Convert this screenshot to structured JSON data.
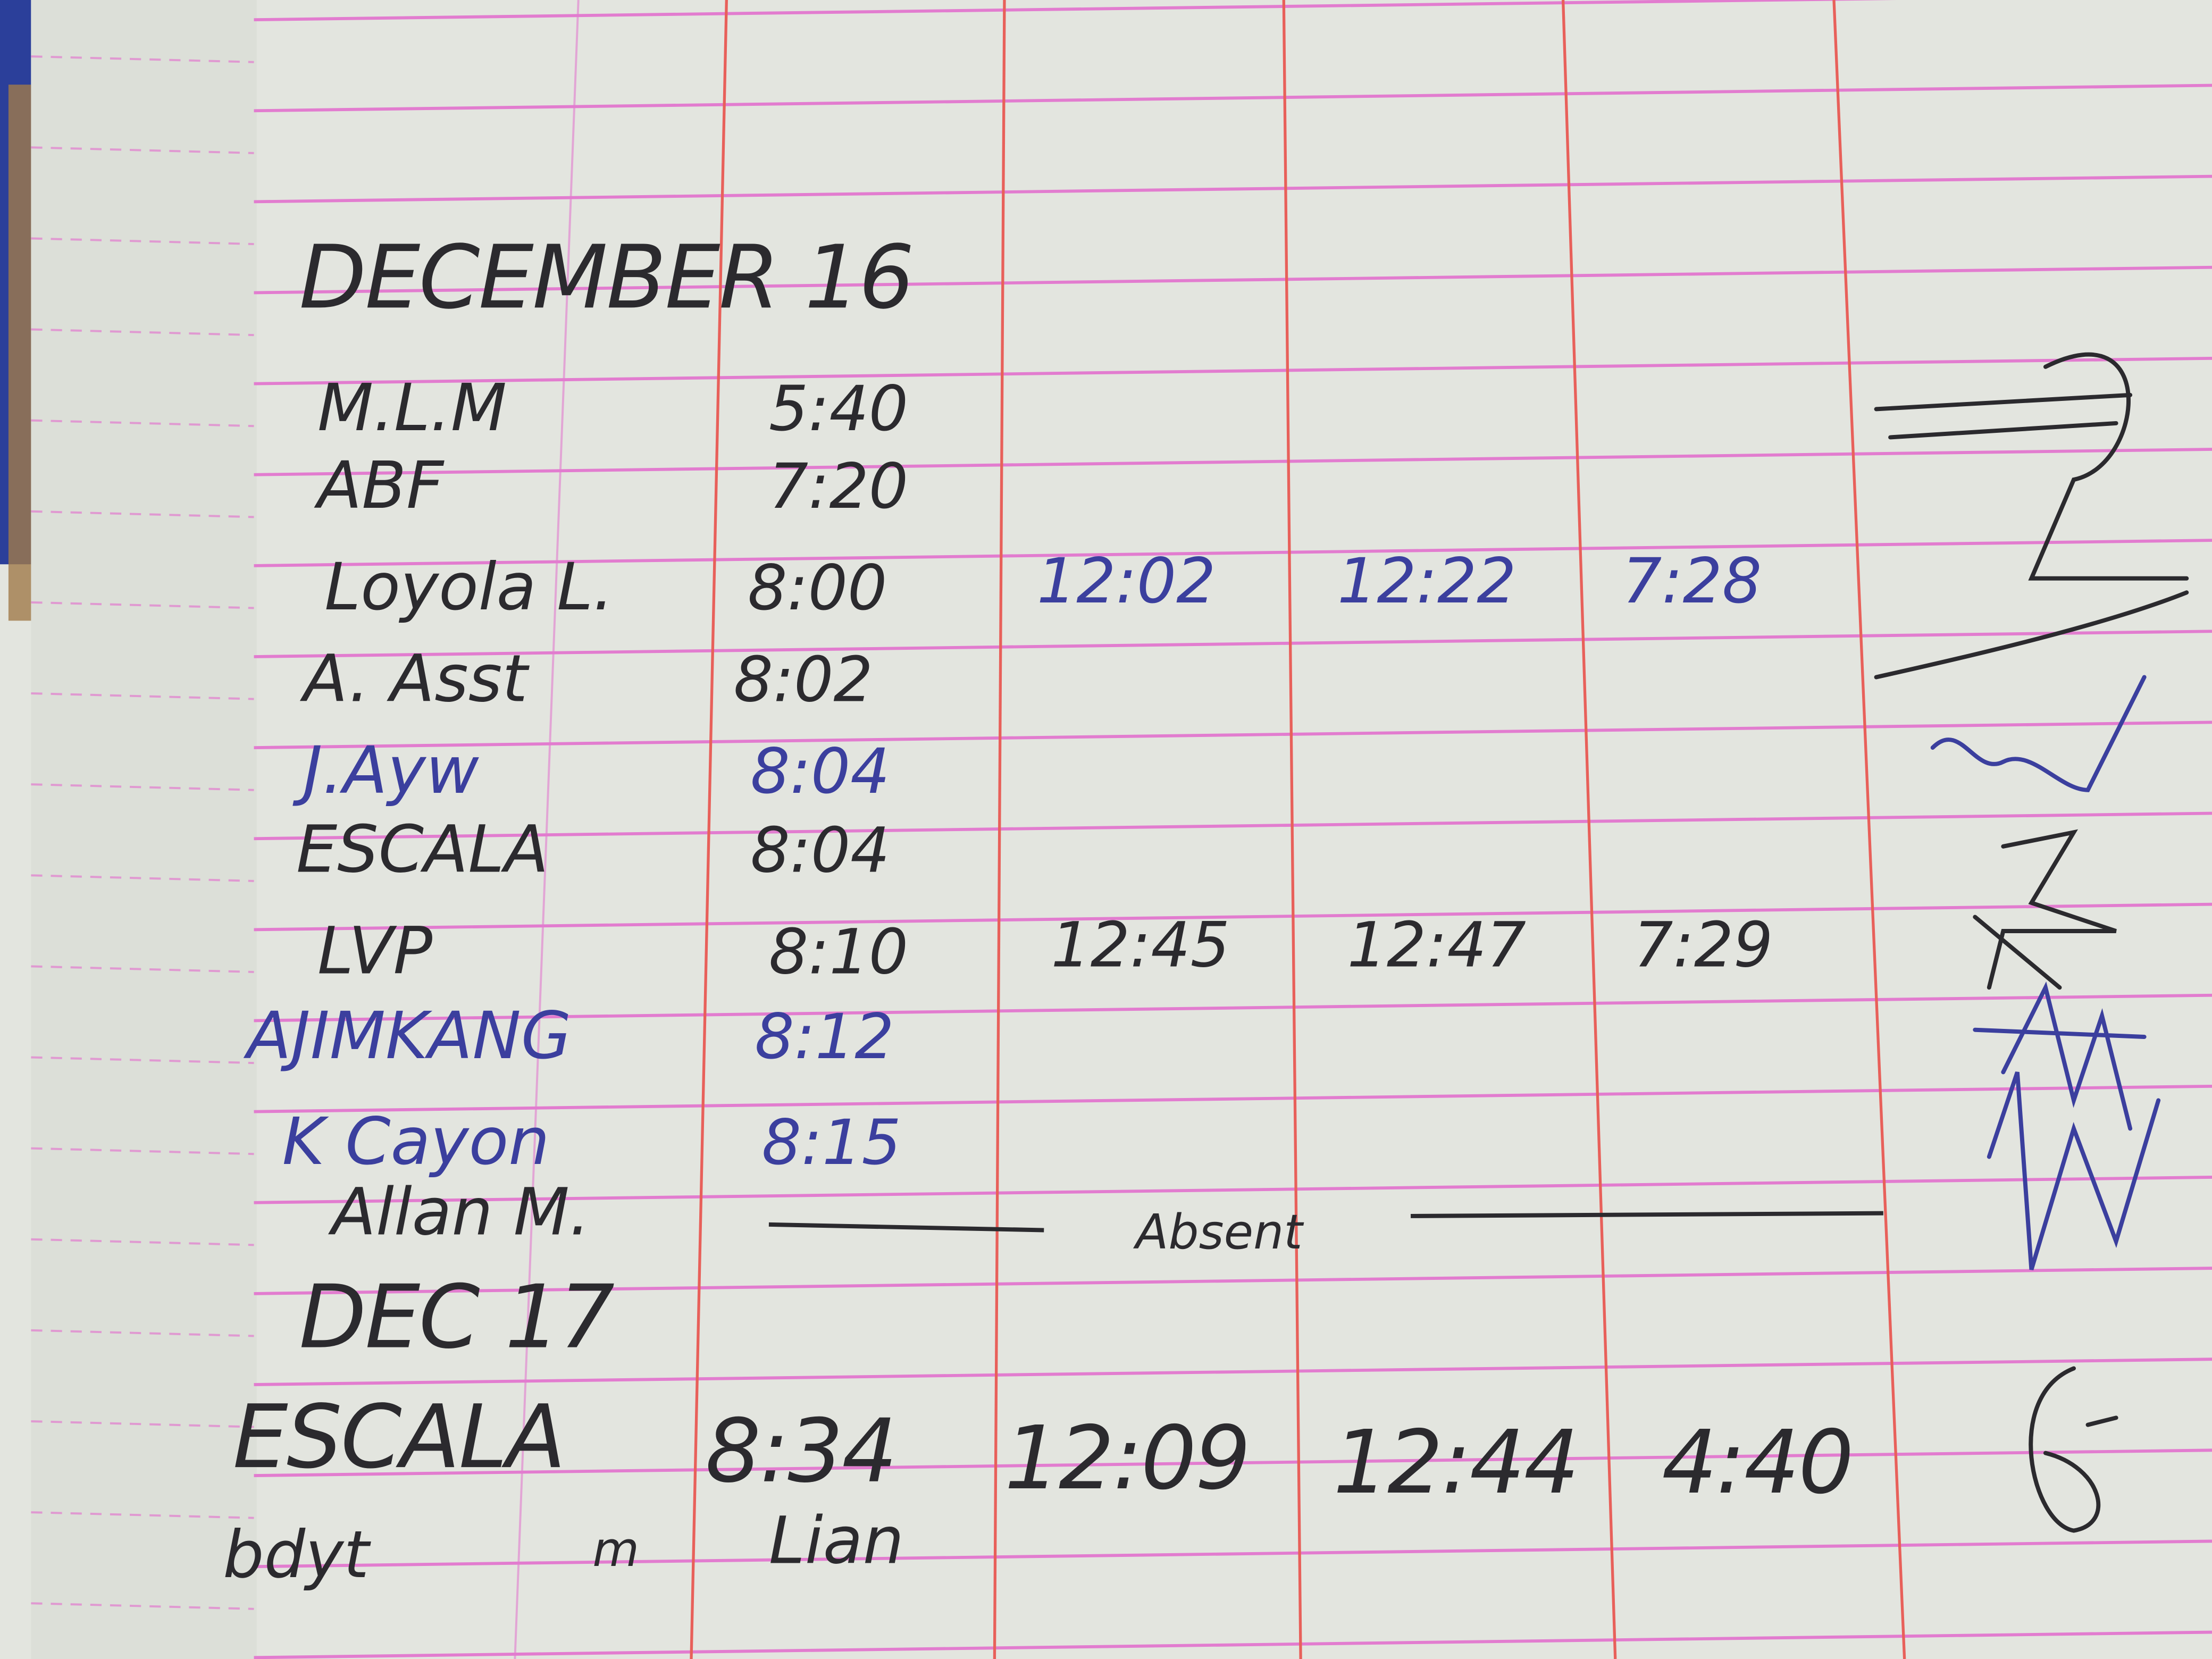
{
  "colors": {
    "paper": "#e3e5df",
    "ruling_pink": "#e27ccf",
    "margin_red": "#e8605a",
    "ink_black": "#2b2a2e",
    "ink_blue": "#3b3f9e",
    "cover_blue": "#2b3f9a",
    "cover_brown": "#a07a4a"
  },
  "log": {
    "date_1": "DECEMBER 16",
    "entries_1": [
      {
        "name": "M.L.M",
        "time_in": "5:40",
        "lunch_out": "",
        "lunch_in": "",
        "time_out": "",
        "ink": "black"
      },
      {
        "name": "ABF",
        "time_in": "7:20",
        "lunch_out": "",
        "lunch_in": "",
        "time_out": "",
        "ink": "black"
      },
      {
        "name": "Loyola L.",
        "time_in": "8:00",
        "lunch_out": "12:02",
        "lunch_in": "12:22",
        "time_out": "7:28",
        "ink": "black",
        "later_ink": "blue"
      },
      {
        "name": "A. Asst",
        "time_in": "8:02",
        "lunch_out": "",
        "lunch_in": "",
        "time_out": "",
        "ink": "black"
      },
      {
        "name": "J.Ayw",
        "time_in": "8:04",
        "lunch_out": "",
        "lunch_in": "",
        "time_out": "",
        "ink": "blue"
      },
      {
        "name": "ESCALA",
        "time_in": "8:04",
        "lunch_out": "",
        "lunch_in": "",
        "time_out": "",
        "ink": "black"
      },
      {
        "name": "LVP",
        "time_in": "8:10",
        "lunch_out": "12:45",
        "lunch_in": "12:47",
        "time_out": "7:29",
        "ink": "black"
      },
      {
        "name": "AJIMKANG",
        "time_in": "8:12",
        "lunch_out": "",
        "lunch_in": "",
        "time_out": "",
        "ink": "blue"
      },
      {
        "name": "K Cayon",
        "time_in": "8:15",
        "lunch_out": "",
        "lunch_in": "",
        "time_out": "",
        "ink": "blue"
      }
    ],
    "absent_entry": {
      "name": "Allan M.",
      "note": "Absent"
    },
    "date_2": "DEC 17",
    "entries_2": [
      {
        "name": "ESCALA",
        "time_in": "8:34",
        "lunch_out": "12:09",
        "lunch_in": "12:44",
        "time_out": "4:40",
        "ink": "black"
      },
      {
        "name": "bdyt",
        "extra": "m",
        "time_in": "Lian",
        "ink": "black"
      }
    ]
  }
}
